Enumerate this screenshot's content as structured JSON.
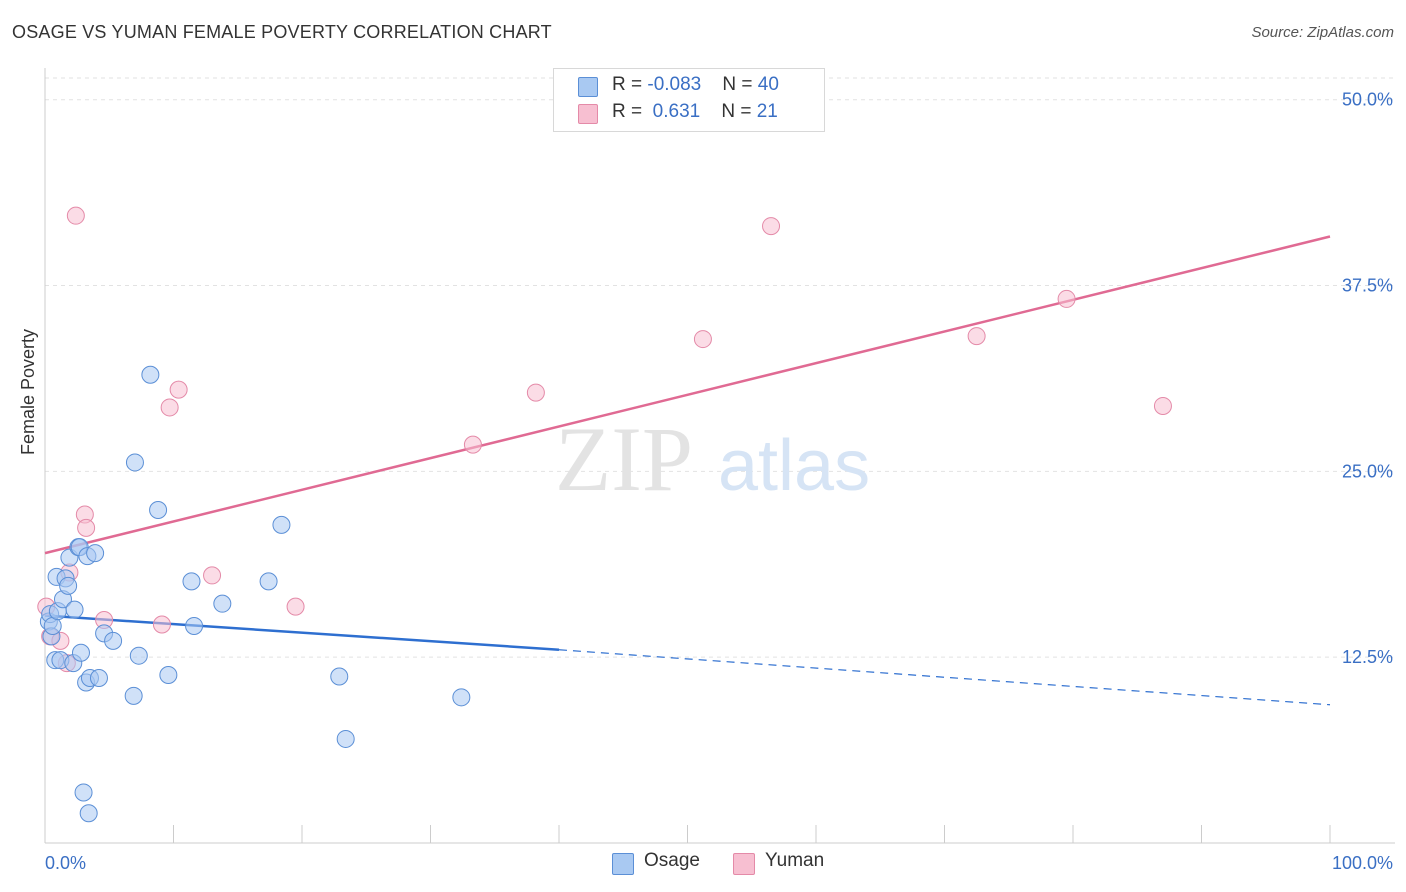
{
  "title": "OSAGE VS YUMAN FEMALE POVERTY CORRELATION CHART",
  "source": "Source: ZipAtlas.com",
  "watermark": {
    "zip": "ZIP",
    "atlas": "atlas"
  },
  "legend": {
    "osage": {
      "r_label": "R = ",
      "r_value": "-0.083",
      "n_label": "N = ",
      "n_value": "40"
    },
    "yuman": {
      "r_label": "R = ",
      "r_value": " 0.631",
      "n_label": "N = ",
      "n_value": "21"
    }
  },
  "colors": {
    "osage_fill": "#a9c9f2",
    "osage_stroke": "#5b8fd6",
    "osage_line": "#2e6fd0",
    "yuman_fill": "#f7bfd1",
    "yuman_stroke": "#e48aa8",
    "yuman_line": "#e06a93",
    "tick_label": "#3a6fc4",
    "grid": "#e2e2e2"
  },
  "chart_data": {
    "type": "scatter",
    "title": "OSAGE VS YUMAN FEMALE POVERTY CORRELATION CHART",
    "xlabel": "",
    "ylabel": "Female Poverty",
    "xlim": [
      0,
      100
    ],
    "ylim": [
      0,
      52
    ],
    "x_tick_labels": [
      "0.0%",
      "100.0%"
    ],
    "y_ticks": [
      12.5,
      25.0,
      37.5,
      50.0
    ],
    "y_tick_labels": [
      "12.5%",
      "25.0%",
      "37.5%",
      "50.0%"
    ],
    "grid": true,
    "legend_position": "top-center",
    "series": [
      {
        "name": "Osage",
        "points": [
          [
            0.3,
            14.9
          ],
          [
            0.4,
            15.4
          ],
          [
            0.5,
            13.9
          ],
          [
            0.6,
            14.6
          ],
          [
            0.8,
            12.3
          ],
          [
            0.9,
            17.9
          ],
          [
            1.0,
            15.6
          ],
          [
            1.2,
            12.3
          ],
          [
            1.4,
            16.4
          ],
          [
            1.6,
            17.8
          ],
          [
            1.8,
            17.3
          ],
          [
            1.9,
            19.2
          ],
          [
            2.2,
            12.1
          ],
          [
            2.3,
            15.7
          ],
          [
            2.6,
            19.9
          ],
          [
            2.7,
            19.9
          ],
          [
            2.8,
            12.8
          ],
          [
            3.0,
            3.4
          ],
          [
            3.2,
            10.8
          ],
          [
            3.3,
            19.3
          ],
          [
            3.4,
            2.0
          ],
          [
            3.5,
            11.1
          ],
          [
            3.9,
            19.5
          ],
          [
            4.2,
            11.1
          ],
          [
            4.6,
            14.1
          ],
          [
            5.3,
            13.6
          ],
          [
            6.9,
            9.9
          ],
          [
            7.0,
            25.6
          ],
          [
            7.3,
            12.6
          ],
          [
            8.2,
            31.5
          ],
          [
            8.8,
            22.4
          ],
          [
            9.6,
            11.3
          ],
          [
            11.4,
            17.6
          ],
          [
            11.6,
            14.6
          ],
          [
            13.8,
            16.1
          ],
          [
            17.4,
            17.6
          ],
          [
            18.4,
            21.4
          ],
          [
            22.9,
            11.2
          ],
          [
            23.4,
            7.0
          ],
          [
            32.4,
            9.8
          ]
        ],
        "trend_solid": [
          [
            0,
            15.3
          ],
          [
            40,
            13.0
          ]
        ],
        "trend_dashed": [
          [
            40,
            13.0
          ],
          [
            100,
            9.3
          ]
        ]
      },
      {
        "name": "Yuman",
        "points": [
          [
            0.1,
            15.9
          ],
          [
            0.4,
            13.9
          ],
          [
            1.2,
            13.6
          ],
          [
            1.7,
            12.1
          ],
          [
            1.9,
            18.2
          ],
          [
            2.4,
            42.2
          ],
          [
            3.1,
            22.1
          ],
          [
            3.2,
            21.2
          ],
          [
            4.6,
            15.0
          ],
          [
            9.1,
            14.7
          ],
          [
            9.7,
            29.3
          ],
          [
            10.4,
            30.5
          ],
          [
            13.0,
            18.0
          ],
          [
            19.5,
            15.9
          ],
          [
            33.3,
            26.8
          ],
          [
            38.2,
            30.3
          ],
          [
            51.2,
            33.9
          ],
          [
            56.5,
            41.5
          ],
          [
            72.5,
            34.1
          ],
          [
            79.5,
            36.6
          ],
          [
            87.0,
            29.4
          ]
        ],
        "trend_solid": [
          [
            0,
            19.5
          ],
          [
            100,
            40.8
          ]
        ]
      }
    ]
  }
}
